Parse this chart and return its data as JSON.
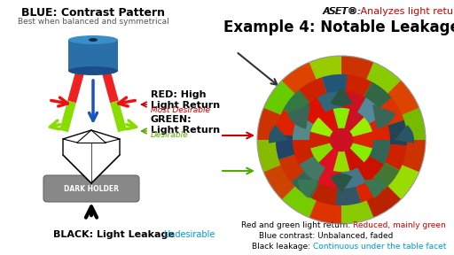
{
  "title_left": "BLUE: Contrast Pattern",
  "subtitle_left": "Best when balanced and symmetrical",
  "aset_label": "ASET®:",
  "aset_sub": " Analyzes light return",
  "example_title": "Example 4: Notable Leakage",
  "red_label": "RED: High\nLight Return",
  "red_sub": "Most Desirable",
  "green_label": "GREEN:\nLight Return",
  "green_sub": "Desirable",
  "black_label": "BLACK: Light Leakage",
  "black_sub": "Undesirable",
  "dark_holder_label": "DARK HOLDER",
  "caption1_black": "Red and green light return: ",
  "caption1_red": "Reduced, mainly green",
  "caption2": "Blue contrast: Unbalanced, faded",
  "caption3_black": "Black leakage: ",
  "caption3_cyan": "Continuous under the table facet",
  "bg_color": "#ffffff",
  "red_color": "#cc0000",
  "green_color": "#55aa00",
  "cyan_color": "#0099cc",
  "blue_cyl_body": "#2a6fa8",
  "blue_cyl_top": "#3a8ec8",
  "blue_cyl_bot": "#1a4e88",
  "gray_holder": "#888888",
  "gray_holder_dark": "#666666"
}
